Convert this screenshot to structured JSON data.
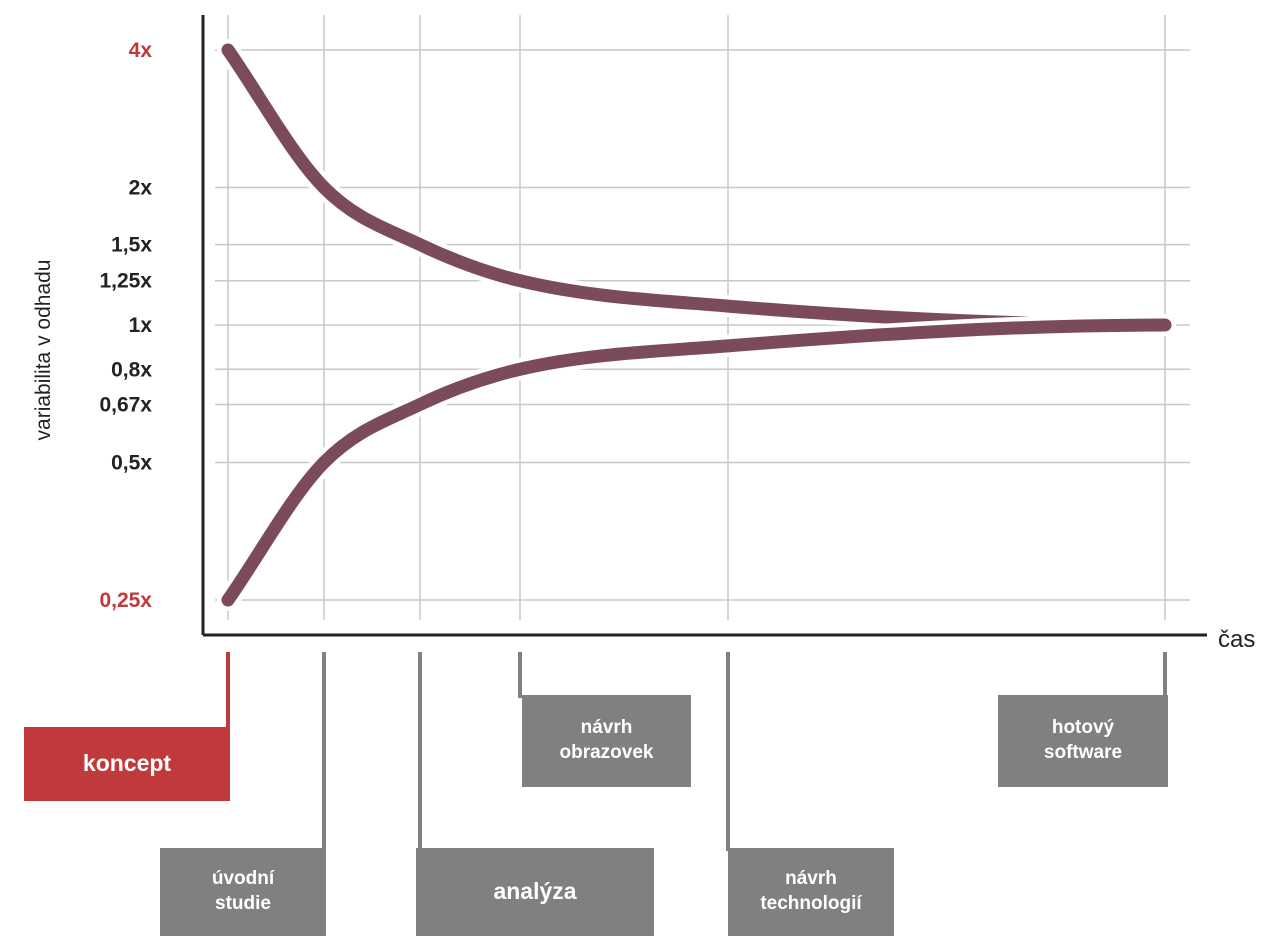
{
  "chart_data": {
    "type": "line",
    "title": "",
    "ylabel": "variabilita v odhadu",
    "xlabel": "čas",
    "y_scale": "log",
    "ylim": [
      0.25,
      4
    ],
    "grid": true,
    "y_ticks": [
      {
        "value": 4,
        "label": "4x",
        "color": "#c0393b"
      },
      {
        "value": 2,
        "label": "2x",
        "color": "#222222"
      },
      {
        "value": 1.5,
        "label": "1,5x",
        "color": "#222222"
      },
      {
        "value": 1.25,
        "label": "1,25x",
        "color": "#222222"
      },
      {
        "value": 1,
        "label": "1x",
        "color": "#222222"
      },
      {
        "value": 0.8,
        "label": "0,8x",
        "color": "#222222"
      },
      {
        "value": 0.67,
        "label": "0,67x",
        "color": "#222222"
      },
      {
        "value": 0.5,
        "label": "0,5x",
        "color": "#222222"
      },
      {
        "value": 0.25,
        "label": "0,25x",
        "color": "#c0393b"
      }
    ],
    "phases": [
      {
        "label": "koncept",
        "color": "#c0393b"
      },
      {
        "label": "úvodní\nstudie",
        "color": "#808080"
      },
      {
        "label": "analýza",
        "color": "#808080"
      },
      {
        "label": "návrh\nobrazovek",
        "color": "#808080"
      },
      {
        "label": "návrh\ntechnologií",
        "color": "#808080"
      },
      {
        "label": "hotový\nsoftware",
        "color": "#808080"
      }
    ],
    "series": [
      {
        "values": [
          4,
          2,
          1.5,
          1.25,
          1.1,
          1
        ]
      },
      {
        "values": [
          0.25,
          0.5,
          0.67,
          0.8,
          0.9,
          1
        ]
      }
    ],
    "line_color": "#7b4b5d",
    "grid_color": "#c8c8c8"
  }
}
